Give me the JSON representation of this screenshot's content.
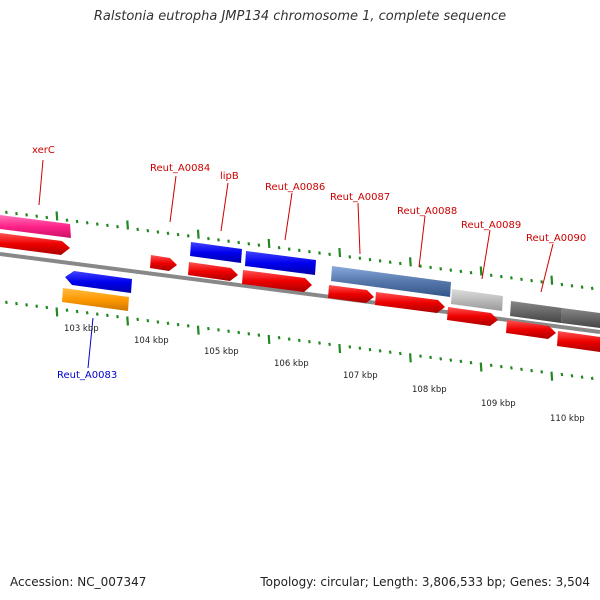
{
  "title": "Ralstonia eutropha JMP134 chromosome 1, complete sequence",
  "footer": {
    "accession": "Accession: NC_007347",
    "summary": "Topology: circular; Length: 3,806,533 bp; Genes: 3,504"
  },
  "scale_labels": [
    "103 kbp",
    "104 kbp",
    "105 kbp",
    "106 kbp",
    "107 kbp",
    "108 kbp",
    "109 kbp",
    "110 kbp"
  ],
  "gene_labels": {
    "xerC": "xerC",
    "reut_a0084": "Reut_A0084",
    "lipB": "lipB",
    "reut_a0086": "Reut_A0086",
    "reut_a0087": "Reut_A0087",
    "reut_a0088": "Reut_A0088",
    "reut_a0089": "Reut_A0089",
    "reut_a0090": "Reut_A0090",
    "reut_a0083": "Reut_A0083"
  },
  "colors": {
    "cds": "#ee0000",
    "pink": "#ff3399",
    "blue": "#0000ee",
    "orange": "#ff9900",
    "steel": "#5577aa",
    "gray_light": "#bbbbbb",
    "gray_dark": "#666666",
    "tick": "#228822",
    "backbone": "#888888"
  }
}
